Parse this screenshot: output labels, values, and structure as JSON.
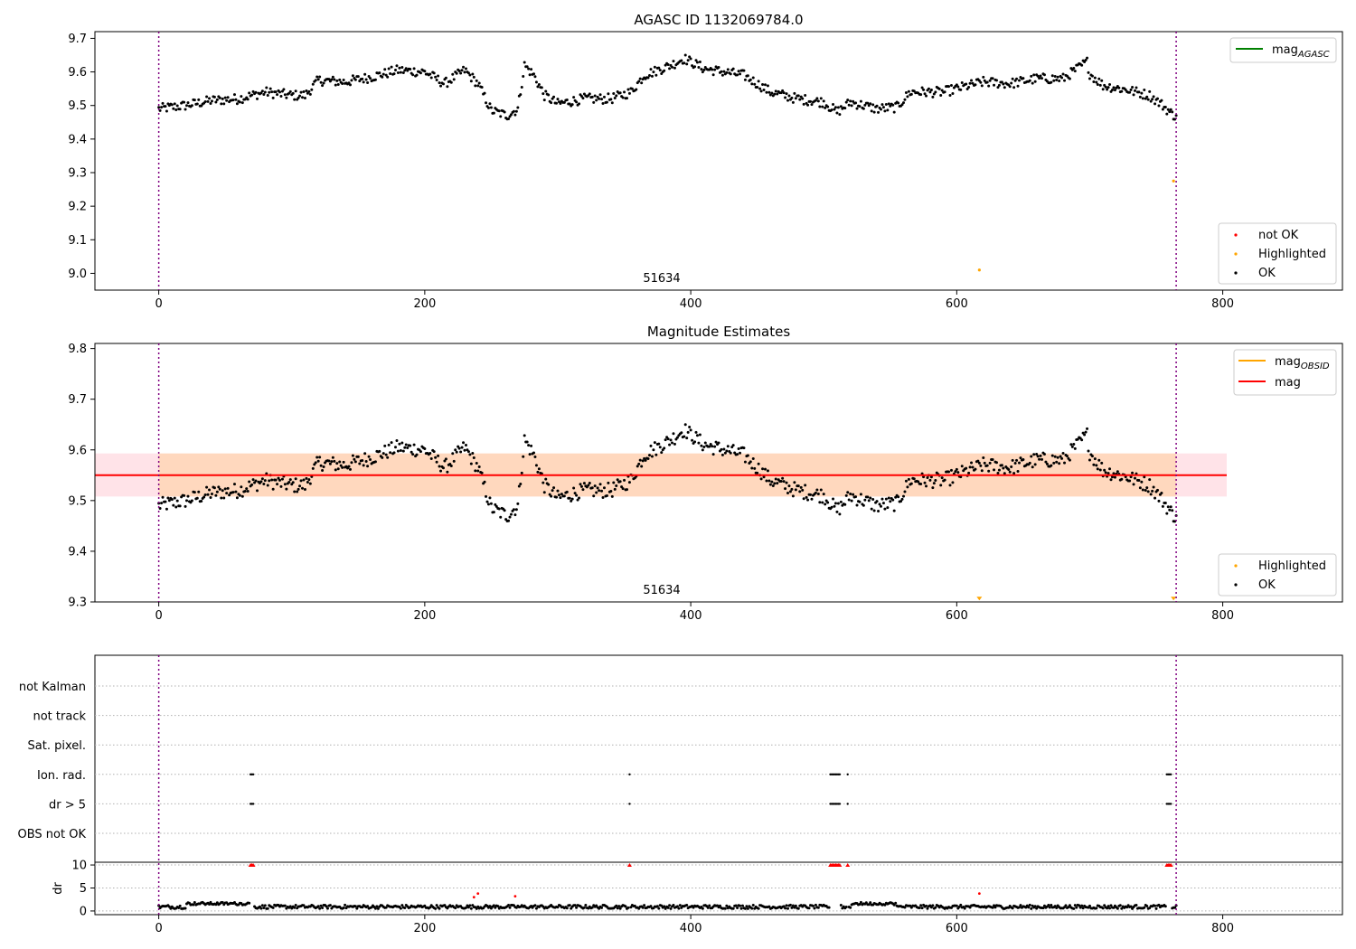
{
  "figure_title": "AGASC ID 1132069784.0",
  "chart_data": [
    {
      "panel": "agasc",
      "type": "scatter",
      "title": "AGASC ID 1132069784.0",
      "annotation": "51634",
      "xlim": [
        -48,
        890
      ],
      "ylim": [
        8.95,
        9.72
      ],
      "xticks": [
        0,
        200,
        400,
        600,
        800
      ],
      "yticks": [
        9.0,
        9.1,
        9.2,
        9.3,
        9.4,
        9.5,
        9.6,
        9.7
      ],
      "ytick_labels": [
        "9.0",
        "9.1",
        "9.2",
        "9.3",
        "9.4",
        "9.5",
        "9.6",
        "9.7"
      ],
      "xtick_labels": [
        "0",
        "200",
        "400",
        "600",
        "800"
      ],
      "vlines": [
        0,
        765
      ],
      "line_legend": {
        "name": "mag",
        "subscript": "AGASC",
        "color": "#008000",
        "position": "top-right"
      },
      "point_legend": [
        {
          "name": "not OK",
          "color": "#ff0000"
        },
        {
          "name": "Highlighted",
          "color": "#ffa500"
        },
        {
          "name": "OK",
          "color": "#000000"
        }
      ],
      "point_legend_position": "bottom-right",
      "highlighted_points": [
        [
          763,
          9.275
        ],
        [
          617,
          9.01
        ]
      ],
      "ok_series_profile": [
        [
          0,
          9.49
        ],
        [
          20,
          9.5
        ],
        [
          40,
          9.515
        ],
        [
          60,
          9.52
        ],
        [
          80,
          9.54
        ],
        [
          100,
          9.53
        ],
        [
          110,
          9.53
        ],
        [
          120,
          9.575
        ],
        [
          140,
          9.57
        ],
        [
          160,
          9.585
        ],
        [
          180,
          9.605
        ],
        [
          200,
          9.6
        ],
        [
          215,
          9.565
        ],
        [
          230,
          9.605
        ],
        [
          240,
          9.565
        ],
        [
          250,
          9.485
        ],
        [
          262,
          9.47
        ],
        [
          270,
          9.49
        ],
        [
          275,
          9.62
        ],
        [
          282,
          9.59
        ],
        [
          290,
          9.53
        ],
        [
          300,
          9.505
        ],
        [
          320,
          9.52
        ],
        [
          340,
          9.52
        ],
        [
          355,
          9.54
        ],
        [
          365,
          9.59
        ],
        [
          385,
          9.62
        ],
        [
          395,
          9.64
        ],
        [
          410,
          9.61
        ],
        [
          440,
          9.59
        ],
        [
          460,
          9.54
        ],
        [
          480,
          9.52
        ],
        [
          500,
          9.51
        ],
        [
          510,
          9.48
        ],
        [
          520,
          9.51
        ],
        [
          540,
          9.49
        ],
        [
          555,
          9.495
        ],
        [
          565,
          9.54
        ],
        [
          590,
          9.54
        ],
        [
          605,
          9.555
        ],
        [
          620,
          9.57
        ],
        [
          640,
          9.565
        ],
        [
          660,
          9.58
        ],
        [
          680,
          9.58
        ],
        [
          698,
          9.63
        ],
        [
          700,
          9.595
        ],
        [
          710,
          9.56
        ],
        [
          730,
          9.545
        ],
        [
          745,
          9.53
        ],
        [
          755,
          9.5
        ],
        [
          763,
          9.47
        ],
        [
          765,
          9.475
        ]
      ]
    },
    {
      "panel": "estimates",
      "type": "scatter",
      "title": "Magnitude Estimates",
      "annotation": "51634",
      "xlim": [
        -48,
        890
      ],
      "ylim": [
        9.3,
        9.81
      ],
      "xticks": [
        0,
        200,
        400,
        600,
        800
      ],
      "yticks": [
        9.3,
        9.4,
        9.5,
        9.6,
        9.7,
        9.8
      ],
      "ytick_labels": [
        "9.3",
        "9.4",
        "9.5",
        "9.6",
        "9.7",
        "9.8"
      ],
      "xtick_labels": [
        "0",
        "200",
        "400",
        "600",
        "800"
      ],
      "vlines": [
        0,
        765
      ],
      "mag_line": 9.55,
      "mag_band": [
        9.508,
        9.593
      ],
      "mag_band_xmax": 803,
      "line_legend": [
        {
          "name": "mag",
          "subscript": "OBSID",
          "color": "#ffa500"
        },
        {
          "name": "mag",
          "subscript": "",
          "color": "#ff0000"
        }
      ],
      "line_legend_position": "top-right",
      "point_legend": [
        {
          "name": "Highlighted",
          "color": "#ffa500"
        },
        {
          "name": "OK",
          "color": "#000000"
        }
      ],
      "point_legend_position": "bottom-right",
      "highlighted_points": [
        [
          617,
          9.305
        ],
        [
          763,
          9.305
        ]
      ]
    },
    {
      "panel": "flags",
      "type": "scatter",
      "xlim": [
        -48,
        890
      ],
      "xticks": [
        0,
        200,
        400,
        600,
        800
      ],
      "xtick_labels": [
        "0",
        "200",
        "400",
        "600",
        "800"
      ],
      "vlines": [
        0,
        765
      ],
      "flag_rows": [
        "not Kalman",
        "not track",
        "Sat. pixel.",
        "Ion. rad.",
        "dr > 5",
        "OBS not OK"
      ],
      "flag_points": {
        "Ion. rad.": [
          69,
          70,
          71,
          354,
          505,
          506,
          507,
          508,
          509,
          510,
          511,
          512,
          518,
          758,
          759,
          760,
          761
        ],
        "dr > 5": [
          69,
          70,
          71,
          354,
          505,
          506,
          507,
          508,
          509,
          510,
          511,
          512,
          518,
          758,
          759,
          760,
          761
        ]
      },
      "dr_ylabel": "dr",
      "dr_yticks": [
        0,
        5,
        10
      ],
      "dr_ytick_labels": [
        "0",
        "5",
        "10"
      ],
      "dr_ylim": [
        -0.8,
        10.6
      ],
      "dr_capped_points": [
        69,
        70,
        71,
        354,
        505,
        506,
        507,
        508,
        509,
        510,
        511,
        512,
        518,
        758,
        759,
        760,
        761
      ],
      "dr_outliers": [
        [
          237,
          3.0
        ],
        [
          240,
          3.8
        ],
        [
          268,
          3.2
        ],
        [
          617,
          3.8
        ]
      ]
    }
  ]
}
